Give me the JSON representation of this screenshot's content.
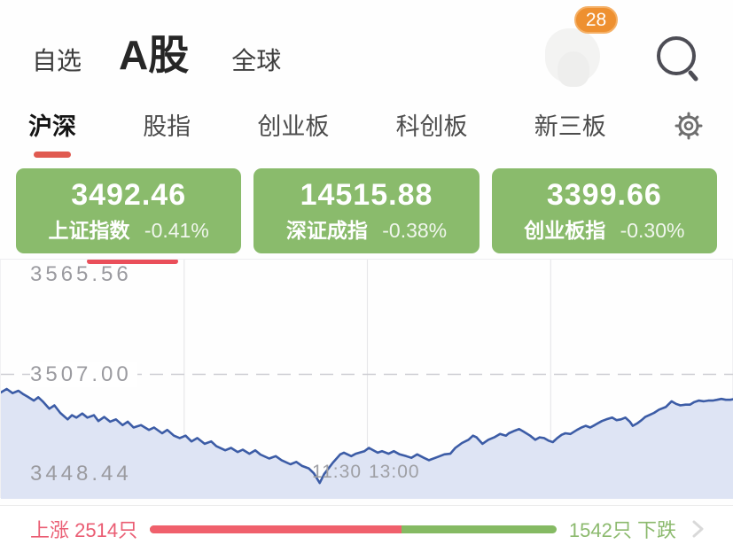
{
  "header": {
    "nav_items": [
      {
        "label": "自选",
        "active": false
      },
      {
        "label": "A股",
        "active": true
      },
      {
        "label": "全球",
        "active": false
      }
    ],
    "notification_badge": "28"
  },
  "tabs": {
    "items": [
      {
        "label": "沪深",
        "active": true
      },
      {
        "label": "股指",
        "active": false
      },
      {
        "label": "创业板",
        "active": false
      },
      {
        "label": "科创板",
        "active": false
      },
      {
        "label": "新三板",
        "active": false
      }
    ]
  },
  "index_cards": [
    {
      "value": "3492.46",
      "name": "上证指数",
      "change": "-0.41%",
      "selected": true
    },
    {
      "value": "14515.88",
      "name": "深证成指",
      "change": "-0.38%",
      "selected": false
    },
    {
      "value": "3399.66",
      "name": "创业板指",
      "change": "-0.30%",
      "selected": false
    }
  ],
  "chart_data": {
    "type": "area",
    "y_ticks": [
      {
        "label": "3565.56",
        "value": 3565.56
      },
      {
        "label": "3507.00",
        "value": 3507.0,
        "style": "dashed"
      },
      {
        "label": "3448.44",
        "value": 3448.44
      }
    ],
    "x_ticks": [
      {
        "label": "11:30"
      },
      {
        "label": "13:00"
      }
    ],
    "x_gridlines": [
      0.25,
      0.5,
      0.75
    ],
    "ylim": [
      3433.9,
      3574.4
    ],
    "line_color": "#3c5ca6",
    "fill_color": "#dee4f4",
    "grid_color": "#e7e7ea",
    "dash_color": "#cdcdd2",
    "points": [
      [
        0.0,
        3496.4
      ],
      [
        0.008,
        3498.4
      ],
      [
        0.016,
        3496.0
      ],
      [
        0.024,
        3497.4
      ],
      [
        0.03,
        3495.5
      ],
      [
        0.036,
        3494.0
      ],
      [
        0.045,
        3491.6
      ],
      [
        0.051,
        3493.6
      ],
      [
        0.057,
        3491.2
      ],
      [
        0.066,
        3486.8
      ],
      [
        0.073,
        3488.8
      ],
      [
        0.081,
        3484.4
      ],
      [
        0.091,
        3480.6
      ],
      [
        0.097,
        3483.0
      ],
      [
        0.103,
        3481.6
      ],
      [
        0.111,
        3484.0
      ],
      [
        0.118,
        3481.6
      ],
      [
        0.127,
        3483.0
      ],
      [
        0.133,
        3479.6
      ],
      [
        0.141,
        3482.0
      ],
      [
        0.149,
        3479.2
      ],
      [
        0.157,
        3480.6
      ],
      [
        0.166,
        3477.2
      ],
      [
        0.173,
        3479.2
      ],
      [
        0.181,
        3475.8
      ],
      [
        0.191,
        3477.2
      ],
      [
        0.202,
        3474.4
      ],
      [
        0.209,
        3475.8
      ],
      [
        0.22,
        3472.4
      ],
      [
        0.227,
        3474.4
      ],
      [
        0.236,
        3471.0
      ],
      [
        0.244,
        3469.6
      ],
      [
        0.252,
        3471.0
      ],
      [
        0.26,
        3467.6
      ],
      [
        0.268,
        3469.6
      ],
      [
        0.278,
        3466.2
      ],
      [
        0.287,
        3467.6
      ],
      [
        0.294,
        3464.8
      ],
      [
        0.306,
        3462.4
      ],
      [
        0.314,
        3463.8
      ],
      [
        0.323,
        3461.4
      ],
      [
        0.33,
        3462.8
      ],
      [
        0.339,
        3460.4
      ],
      [
        0.347,
        3462.4
      ],
      [
        0.354,
        3459.9
      ],
      [
        0.366,
        3457.6
      ],
      [
        0.375,
        3459.0
      ],
      [
        0.383,
        3456.6
      ],
      [
        0.395,
        3454.2
      ],
      [
        0.403,
        3455.6
      ],
      [
        0.411,
        3453.2
      ],
      [
        0.42,
        3451.8
      ],
      [
        0.427,
        3448.9
      ],
      [
        0.435,
        3443.2
      ],
      [
        0.441,
        3448.4
      ],
      [
        0.447,
        3451.8
      ],
      [
        0.453,
        3455.2
      ],
      [
        0.463,
        3460.0
      ],
      [
        0.468,
        3461.0
      ],
      [
        0.478,
        3459.0
      ],
      [
        0.484,
        3460.4
      ],
      [
        0.496,
        3461.9
      ],
      [
        0.502,
        3463.8
      ],
      [
        0.514,
        3461.0
      ],
      [
        0.52,
        3461.9
      ],
      [
        0.529,
        3460.4
      ],
      [
        0.536,
        3461.9
      ],
      [
        0.544,
        3460.0
      ],
      [
        0.553,
        3459.0
      ],
      [
        0.56,
        3458.0
      ],
      [
        0.568,
        3460.0
      ],
      [
        0.577,
        3458.0
      ],
      [
        0.584,
        3456.6
      ],
      [
        0.596,
        3458.5
      ],
      [
        0.605,
        3460.0
      ],
      [
        0.613,
        3460.4
      ],
      [
        0.62,
        3463.8
      ],
      [
        0.629,
        3466.7
      ],
      [
        0.638,
        3468.6
      ],
      [
        0.644,
        3471.0
      ],
      [
        0.649,
        3470.0
      ],
      [
        0.657,
        3466.2
      ],
      [
        0.665,
        3468.6
      ],
      [
        0.673,
        3470.0
      ],
      [
        0.681,
        3472.0
      ],
      [
        0.689,
        3471.0
      ],
      [
        0.693,
        3472.4
      ],
      [
        0.701,
        3473.9
      ],
      [
        0.707,
        3474.9
      ],
      [
        0.713,
        3473.4
      ],
      [
        0.722,
        3471.0
      ],
      [
        0.729,
        3468.6
      ],
      [
        0.735,
        3470.0
      ],
      [
        0.741,
        3469.6
      ],
      [
        0.747,
        3468.1
      ],
      [
        0.753,
        3467.2
      ],
      [
        0.759,
        3469.6
      ],
      [
        0.765,
        3471.5
      ],
      [
        0.77,
        3472.4
      ],
      [
        0.777,
        3472.0
      ],
      [
        0.786,
        3474.4
      ],
      [
        0.792,
        3475.8
      ],
      [
        0.798,
        3476.8
      ],
      [
        0.804,
        3475.8
      ],
      [
        0.81,
        3477.2
      ],
      [
        0.814,
        3478.2
      ],
      [
        0.82,
        3479.6
      ],
      [
        0.826,
        3480.6
      ],
      [
        0.834,
        3481.6
      ],
      [
        0.84,
        3480.1
      ],
      [
        0.846,
        3480.6
      ],
      [
        0.852,
        3481.6
      ],
      [
        0.858,
        3479.2
      ],
      [
        0.862,
        3476.8
      ],
      [
        0.868,
        3478.2
      ],
      [
        0.874,
        3480.1
      ],
      [
        0.879,
        3482.0
      ],
      [
        0.886,
        3483.4
      ],
      [
        0.891,
        3484.4
      ],
      [
        0.898,
        3486.3
      ],
      [
        0.907,
        3487.8
      ],
      [
        0.915,
        3491.2
      ],
      [
        0.921,
        3489.7
      ],
      [
        0.927,
        3488.8
      ],
      [
        0.934,
        3489.2
      ],
      [
        0.94,
        3489.2
      ],
      [
        0.946,
        3490.7
      ],
      [
        0.952,
        3491.6
      ],
      [
        0.959,
        3491.2
      ],
      [
        0.965,
        3491.6
      ],
      [
        0.971,
        3491.6
      ],
      [
        0.977,
        3492.1
      ],
      [
        0.983,
        3492.6
      ],
      [
        0.989,
        3492.1
      ],
      [
        0.995,
        3492.1
      ],
      [
        1.0,
        3492.5
      ]
    ]
  },
  "footer": {
    "up_label": "上涨",
    "up_count": "2514只",
    "up_value": 2514,
    "down_count": "1542只",
    "down_label": "下跌",
    "down_value": 1542
  },
  "colors": {
    "card_green": "#8abb6c",
    "tab_underline_red": "#e05a50",
    "card_indicator_red": "#ea4f5a",
    "badge_orange": "#ee9030",
    "bar_red": "#f0606c",
    "bar_green": "#85ba63",
    "up_text_red": "#ea5d73",
    "down_text_green": "#8cba6e",
    "chart_line_blue": "#3c5ca6",
    "chart_fill_blue": "#dee4f4"
  }
}
